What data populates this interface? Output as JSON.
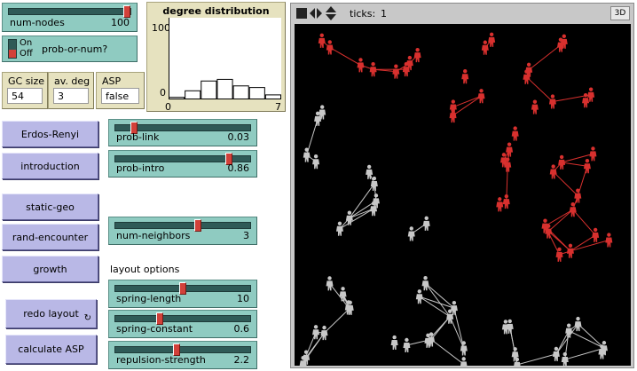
{
  "sliders": {
    "num_nodes": {
      "label": "num-nodes",
      "value": "100",
      "fraction": 1.0
    },
    "prob_link": {
      "label": "prob-link",
      "value": "0.03",
      "fraction": 0.12
    },
    "prob_intro": {
      "label": "prob-intro",
      "value": "0.86",
      "fraction": 0.86
    },
    "num_neighbors": {
      "label": "num-neighbors",
      "value": "3",
      "fraction": 0.62
    },
    "spring_length": {
      "label": "spring-length",
      "value": "10",
      "fraction": 0.5
    },
    "spring_constant": {
      "label": "spring-constant",
      "value": "0.6",
      "fraction": 0.32
    },
    "repulsion_strength": {
      "label": "repulsion-strength",
      "value": "2.2",
      "fraction": 0.45
    }
  },
  "switch": {
    "on": "On",
    "off": "Off",
    "label": "prob-or-num?",
    "state": "Off"
  },
  "monitors": {
    "gc_size": {
      "label": "GC size",
      "value": "54"
    },
    "av_deg": {
      "label": "av. deg",
      "value": "3"
    },
    "asp": {
      "label": "ASP",
      "value": "false"
    }
  },
  "buttons": {
    "erdos_renyi": "Erdos-Renyi",
    "introduction": "introduction",
    "static_geo": "static-geo",
    "rand_encounter": "rand-encounter",
    "growth": "growth",
    "redo_layout": "redo layout",
    "calculate_asp": "calculate ASP",
    "forever_icon": "forever-arrows-icon"
  },
  "layout_options_label": "layout options",
  "view": {
    "ticks_label": "ticks:",
    "ticks_value": "1",
    "view_3d": "3D",
    "background": "#000000",
    "red_color": "#d8302e",
    "gray_color": "#c8c8c8"
  },
  "chart_data": {
    "type": "bar",
    "title": "degree distribution",
    "ylim": [
      0,
      100
    ],
    "xlim": [
      0,
      7
    ],
    "y_tick_labels": [
      "100",
      "0"
    ],
    "x_tick_labels": [
      "0",
      "7"
    ],
    "x": [
      0,
      1,
      2,
      3,
      4,
      5,
      6
    ],
    "values": [
      2,
      10,
      22,
      24,
      16,
      14,
      5
    ]
  }
}
